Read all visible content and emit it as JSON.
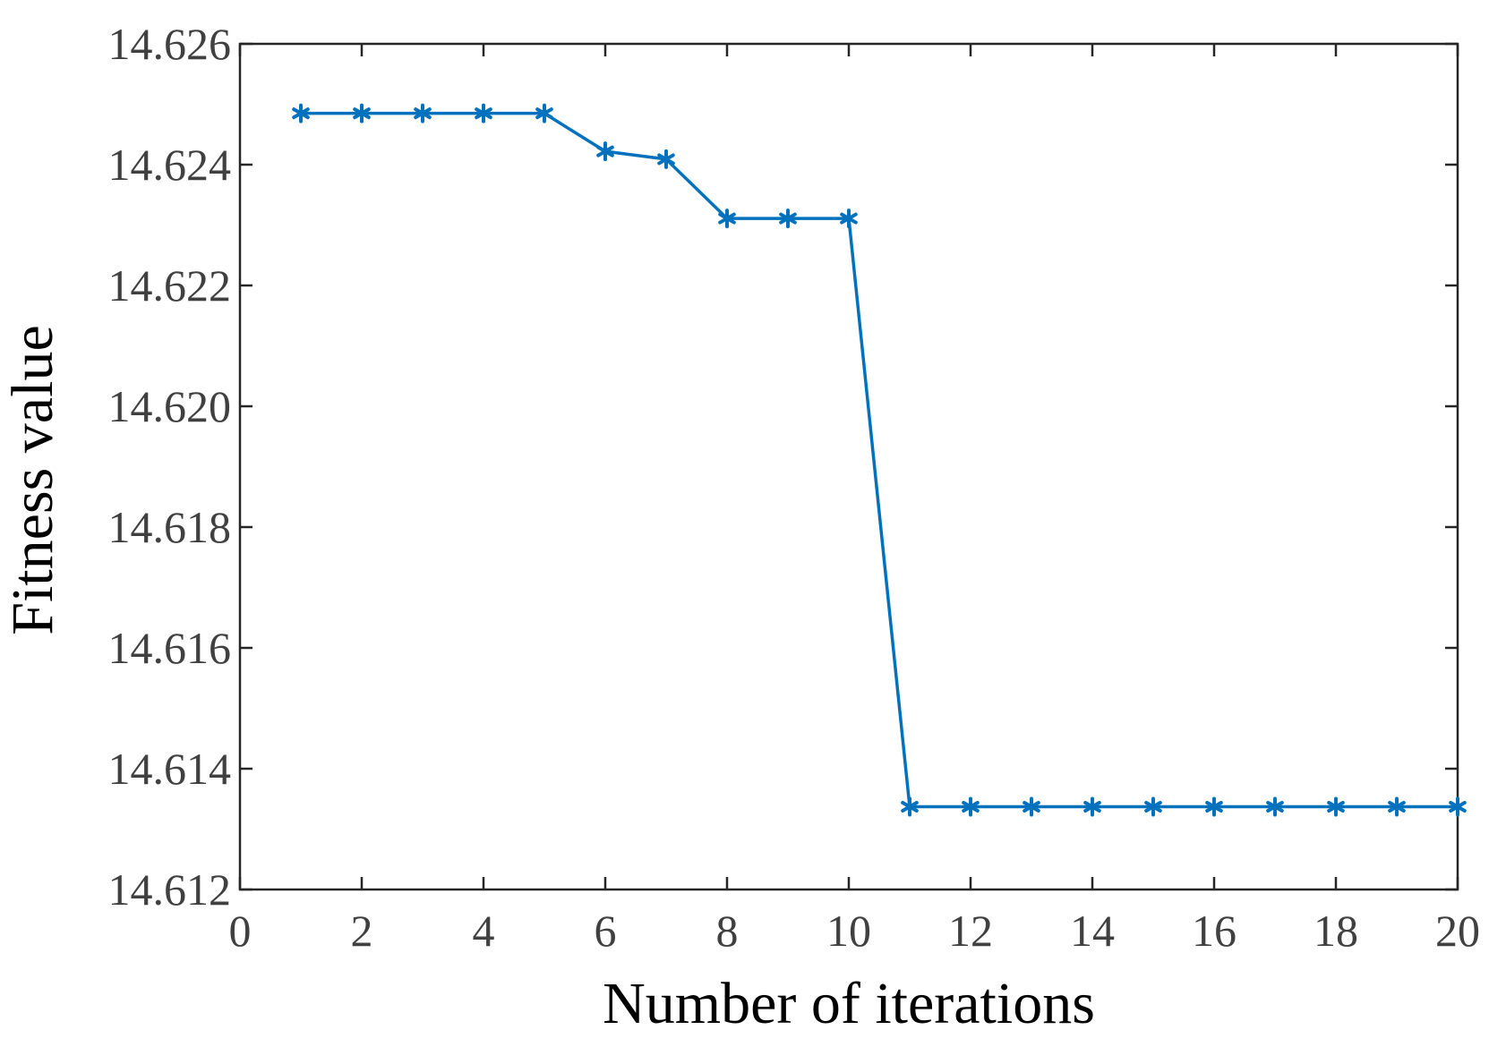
{
  "chart_data": {
    "type": "line",
    "xlabel": "Number of iterations",
    "ylabel": "Fitness value",
    "xlim": [
      0,
      20
    ],
    "ylim": [
      14.612,
      14.626
    ],
    "x_ticks": [
      "0",
      "2",
      "4",
      "6",
      "8",
      "10",
      "12",
      "14",
      "16",
      "18",
      "20"
    ],
    "y_ticks": [
      "14.612",
      "14.614",
      "14.616",
      "14.618",
      "14.620",
      "14.622",
      "14.624",
      "14.626"
    ],
    "grid": false,
    "marker": "asterisk",
    "series": [
      {
        "color": "#0072BD",
        "x": [
          1,
          2,
          3,
          4,
          5,
          6,
          7,
          8,
          9,
          10,
          11,
          12,
          13,
          14,
          15,
          16,
          17,
          18,
          19,
          20
        ],
        "y": [
          14.62485,
          14.62485,
          14.62485,
          14.62485,
          14.62485,
          14.62422,
          14.62409,
          14.62311,
          14.62311,
          14.62311,
          14.61337,
          14.61337,
          14.61337,
          14.61337,
          14.61337,
          14.61337,
          14.61337,
          14.61337,
          14.61337,
          14.61337
        ]
      }
    ]
  }
}
